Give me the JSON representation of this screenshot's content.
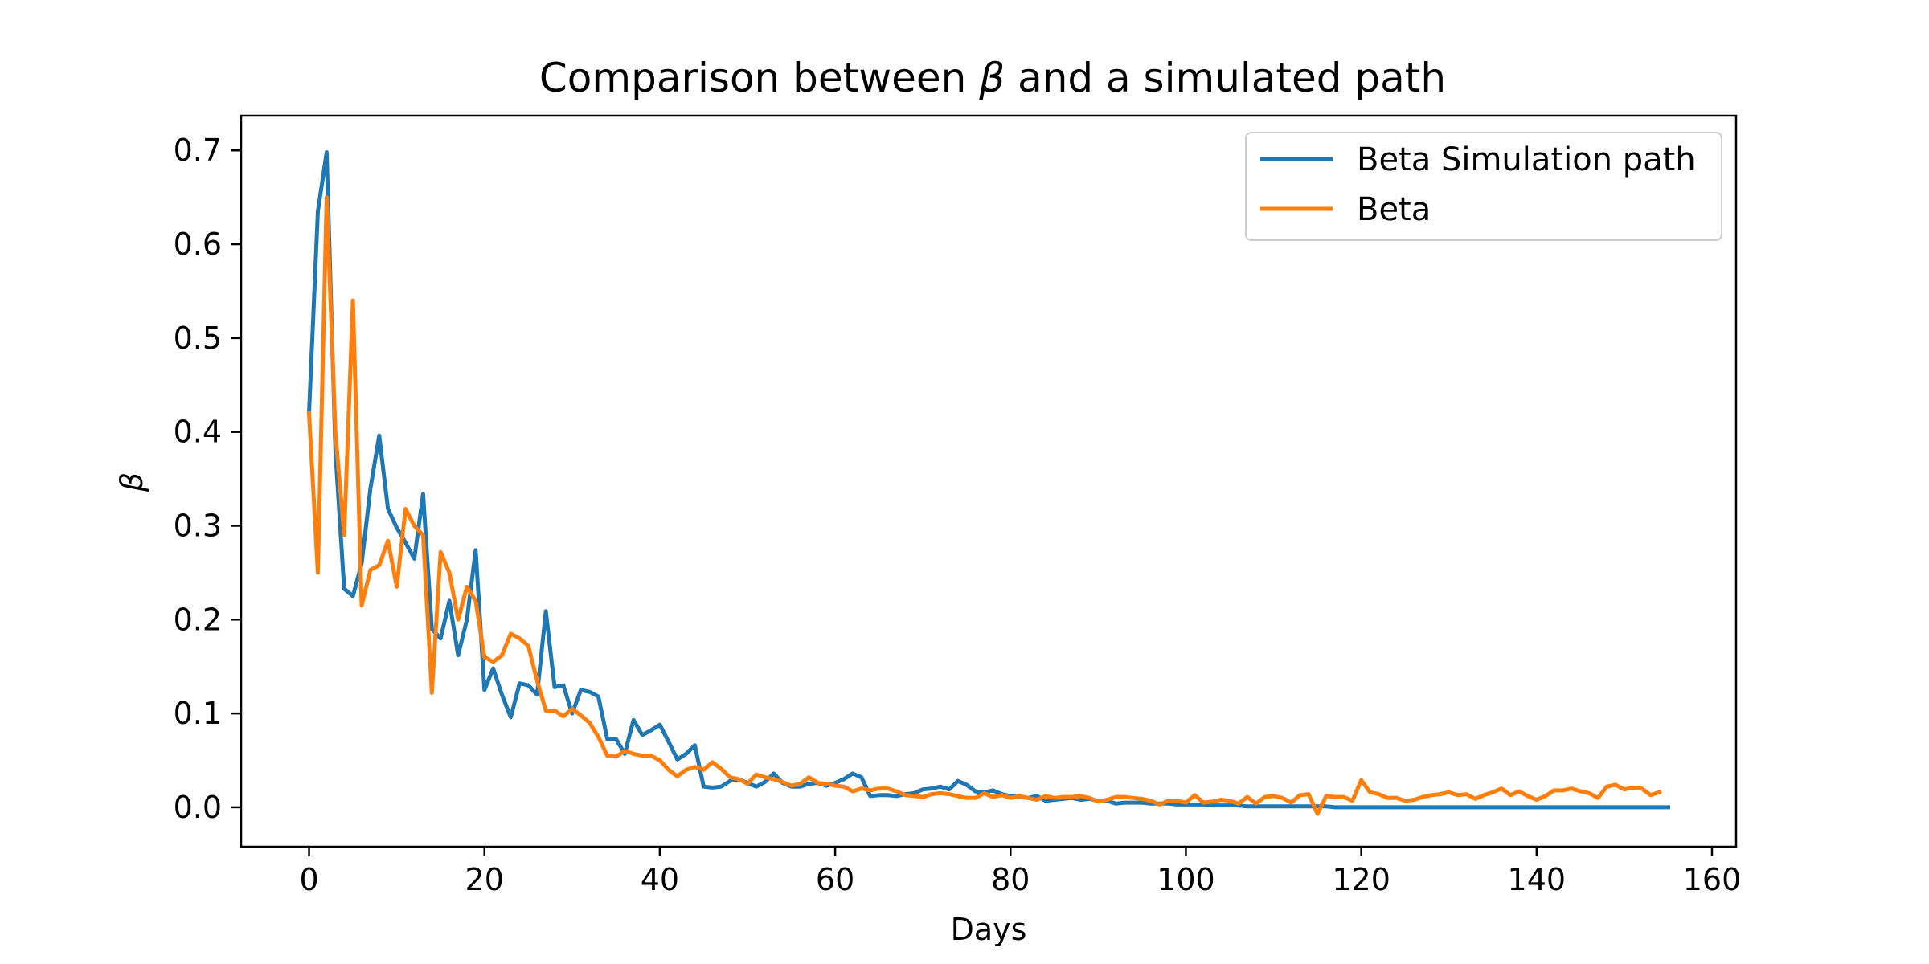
{
  "chart_data": {
    "type": "line",
    "title_prefix": "Comparison between ",
    "title_symbol": "β",
    "title_suffix": " and a simulated path",
    "xlabel": "Days",
    "ylabel": "β",
    "xlim": [
      -7.75,
      162.75
    ],
    "ylim": [
      -0.042,
      0.737
    ],
    "xticks": [
      0,
      20,
      40,
      60,
      80,
      100,
      120,
      140,
      160
    ],
    "yticks": [
      0.0,
      0.1,
      0.2,
      0.3,
      0.4,
      0.5,
      0.6,
      0.7
    ],
    "ytick_labels": [
      "0.0",
      "0.1",
      "0.2",
      "0.3",
      "0.4",
      "0.5",
      "0.6",
      "0.7"
    ],
    "legend_position": "top-right",
    "colors": {
      "sim": "#1f77b4",
      "beta": "#ff7f0e"
    },
    "series": [
      {
        "name": "Beta Simulation path",
        "color": "#1f77b4",
        "x_start": 0,
        "values": [
          0.42,
          0.635,
          0.698,
          0.38,
          0.233,
          0.225,
          0.26,
          0.34,
          0.396,
          0.318,
          0.298,
          0.282,
          0.265,
          0.334,
          0.19,
          0.18,
          0.22,
          0.162,
          0.2,
          0.274,
          0.125,
          0.148,
          0.12,
          0.096,
          0.132,
          0.13,
          0.12,
          0.209,
          0.128,
          0.13,
          0.1,
          0.125,
          0.123,
          0.118,
          0.073,
          0.073,
          0.057,
          0.093,
          0.077,
          0.082,
          0.088,
          0.07,
          0.051,
          0.057,
          0.066,
          0.022,
          0.021,
          0.022,
          0.028,
          0.03,
          0.026,
          0.022,
          0.027,
          0.036,
          0.026,
          0.022,
          0.022,
          0.025,
          0.026,
          0.023,
          0.026,
          0.03,
          0.036,
          0.032,
          0.012,
          0.013,
          0.013,
          0.012,
          0.014,
          0.015,
          0.019,
          0.02,
          0.022,
          0.019,
          0.028,
          0.024,
          0.017,
          0.016,
          0.018,
          0.014,
          0.012,
          0.011,
          0.01,
          0.012,
          0.007,
          0.008,
          0.009,
          0.01,
          0.008,
          0.009,
          0.007,
          0.007,
          0.004,
          0.005,
          0.005,
          0.005,
          0.004,
          0.004,
          0.004,
          0.003,
          0.003,
          0.003,
          0.003,
          0.002,
          0.002,
          0.002,
          0.002,
          0.001,
          0.001,
          0.001,
          0.001,
          0.001,
          0.001,
          0.001,
          0.001,
          0.001,
          0.001,
          0.0,
          0.0,
          0.0,
          0.0,
          0.0,
          0.0,
          0.0,
          0.0,
          0.0,
          0.0,
          0.0,
          0.0,
          0.0,
          0.0,
          0.0,
          0.0,
          0.0,
          0.0,
          0.0,
          0.0,
          0.0,
          0.0,
          0.0,
          0.0,
          0.0,
          0.0,
          0.0,
          0.0,
          0.0,
          0.0,
          0.0,
          0.0,
          0.0,
          0.0,
          0.0,
          0.0,
          0.0,
          0.0,
          0.0
        ]
      },
      {
        "name": "Beta",
        "color": "#ff7f0e",
        "x_start": 0,
        "values": [
          0.42,
          0.25,
          0.65,
          0.4,
          0.29,
          0.54,
          0.215,
          0.253,
          0.258,
          0.284,
          0.235,
          0.318,
          0.3,
          0.29,
          0.122,
          0.272,
          0.25,
          0.2,
          0.235,
          0.22,
          0.16,
          0.155,
          0.162,
          0.185,
          0.18,
          0.172,
          0.135,
          0.103,
          0.103,
          0.097,
          0.105,
          0.098,
          0.09,
          0.075,
          0.055,
          0.054,
          0.06,
          0.057,
          0.055,
          0.055,
          0.05,
          0.04,
          0.033,
          0.04,
          0.043,
          0.04,
          0.048,
          0.041,
          0.032,
          0.03,
          0.025,
          0.035,
          0.032,
          0.03,
          0.027,
          0.023,
          0.025,
          0.032,
          0.026,
          0.025,
          0.023,
          0.022,
          0.017,
          0.02,
          0.018,
          0.02,
          0.02,
          0.017,
          0.013,
          0.012,
          0.011,
          0.014,
          0.015,
          0.014,
          0.012,
          0.01,
          0.01,
          0.015,
          0.011,
          0.013,
          0.01,
          0.012,
          0.01,
          0.008,
          0.012,
          0.01,
          0.011,
          0.011,
          0.012,
          0.01,
          0.006,
          0.008,
          0.011,
          0.011,
          0.01,
          0.009,
          0.007,
          0.003,
          0.007,
          0.007,
          0.005,
          0.013,
          0.005,
          0.006,
          0.008,
          0.007,
          0.004,
          0.011,
          0.004,
          0.011,
          0.012,
          0.01,
          0.005,
          0.013,
          0.014,
          -0.007,
          0.012,
          0.011,
          0.011,
          0.007,
          0.029,
          0.016,
          0.014,
          0.01,
          0.01,
          0.007,
          0.008,
          0.011,
          0.013,
          0.014,
          0.016,
          0.013,
          0.014,
          0.009,
          0.013,
          0.016,
          0.02,
          0.013,
          0.017,
          0.012,
          0.008,
          0.012,
          0.018,
          0.018,
          0.02,
          0.017,
          0.015,
          0.01,
          0.022,
          0.024,
          0.019,
          0.021,
          0.02,
          0.013,
          0.016
        ]
      }
    ]
  }
}
